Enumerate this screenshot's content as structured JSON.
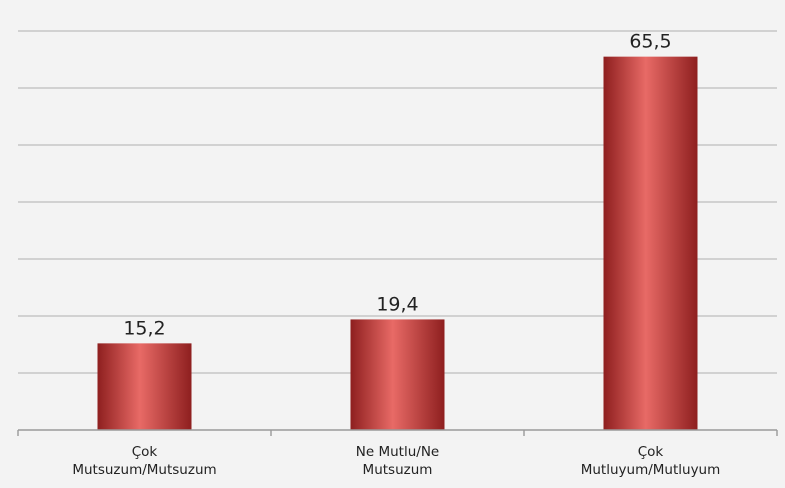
{
  "chart_data": {
    "type": "bar",
    "categories": [
      [
        "Çok",
        "Mutsuzum/Mutsuzum"
      ],
      [
        "Ne Mutlu/Ne",
        "Mutsuzum"
      ],
      [
        "Çok",
        "Mutluyum/Mutluyum"
      ]
    ],
    "values": [
      15.2,
      19.4,
      65.5
    ],
    "value_labels": [
      "15,2",
      "19,4",
      "65,5"
    ],
    "title": "",
    "xlabel": "",
    "ylabel": "",
    "ylim": [
      0,
      70
    ],
    "gridlines": true,
    "grid_step": 10,
    "bar_color": "#c73a38",
    "bar_highlight": "#e86a66",
    "bar_shadow": "#8e1f1f"
  }
}
